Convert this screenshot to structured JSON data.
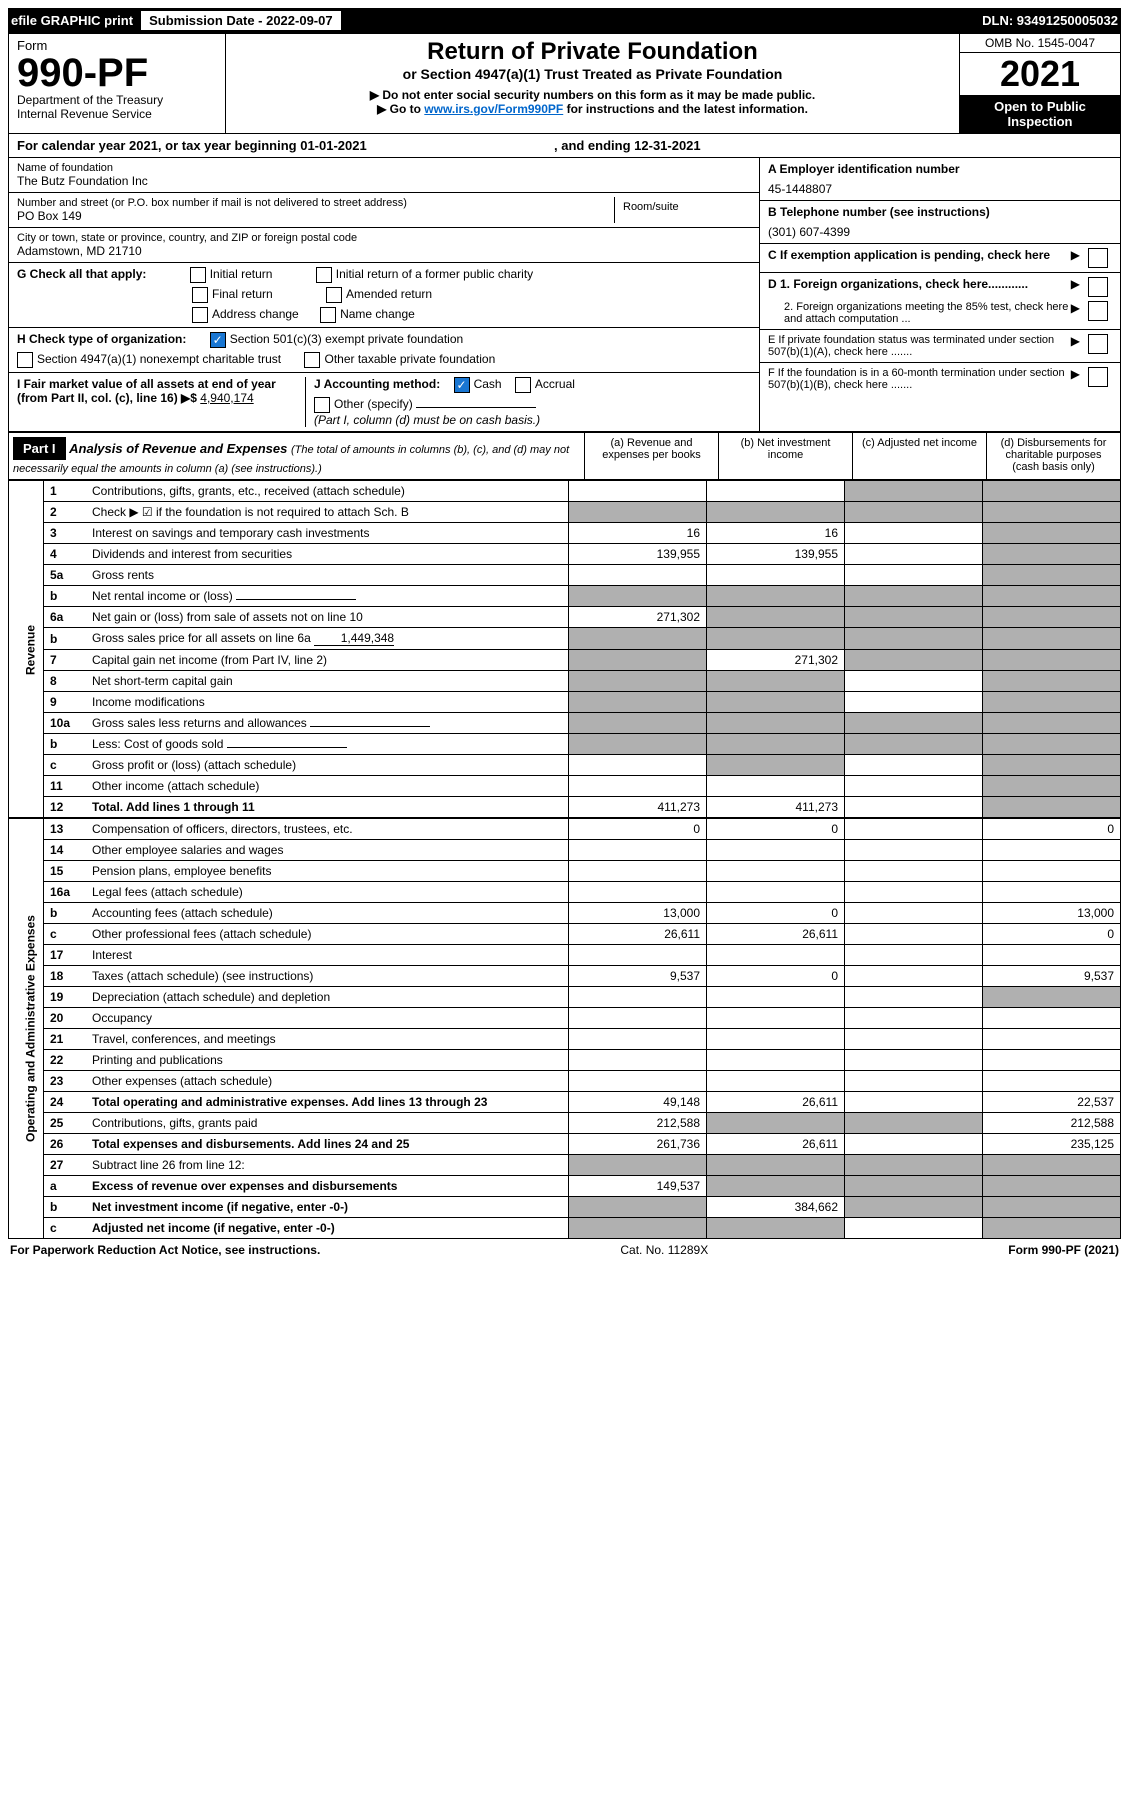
{
  "topbar": {
    "efile": "efile GRAPHIC print",
    "submission_label": "Submission Date - 2022-09-07",
    "dln": "DLN: 93491250005032"
  },
  "header": {
    "form_label": "Form",
    "form_number": "990-PF",
    "dept": "Department of the Treasury",
    "irs": "Internal Revenue Service",
    "title": "Return of Private Foundation",
    "subtitle": "or Section 4947(a)(1) Trust Treated as Private Foundation",
    "note1": "▶ Do not enter social security numbers on this form as it may be made public.",
    "note2_prefix": "▶ Go to ",
    "note2_link": "www.irs.gov/Form990PF",
    "note2_suffix": " for instructions and the latest information.",
    "omb": "OMB No. 1545-0047",
    "year": "2021",
    "open": "Open to Public Inspection"
  },
  "calendar": {
    "text_a": "For calendar year 2021, or tax year beginning 01-01-2021",
    "text_b": ", and ending 12-31-2021"
  },
  "entity": {
    "name_label": "Name of foundation",
    "name": "The Butz Foundation Inc",
    "addr_label": "Number and street (or P.O. box number if mail is not delivered to street address)",
    "addr": "PO Box 149",
    "room_label": "Room/suite",
    "city_label": "City or town, state or province, country, and ZIP or foreign postal code",
    "city": "Adamstown, MD  21710",
    "ein_label": "A Employer identification number",
    "ein": "45-1448807",
    "phone_label": "B Telephone number (see instructions)",
    "phone": "(301) 607-4399",
    "c_label": "C If exemption application is pending, check here",
    "d1": "D 1. Foreign organizations, check here............",
    "d2": "2. Foreign organizations meeting the 85% test, check here and attach computation ...",
    "e": "E  If private foundation status was terminated under section 507(b)(1)(A), check here .......",
    "f": "F  If the foundation is in a 60-month termination under section 507(b)(1)(B), check here .......",
    "g_label": "G Check all that apply:",
    "g_initial": "Initial return",
    "g_initial_former": "Initial return of a former public charity",
    "g_final": "Final return",
    "g_amended": "Amended return",
    "g_address": "Address change",
    "g_name": "Name change",
    "h_label": "H Check type of organization:",
    "h_501c3": "Section 501(c)(3) exempt private foundation",
    "h_4947": "Section 4947(a)(1) nonexempt charitable trust",
    "h_other": "Other taxable private foundation",
    "i_label": "I Fair market value of all assets at end of year (from Part II, col. (c), line 16) ▶$",
    "i_value": "4,940,174",
    "j_label": "J Accounting method:",
    "j_cash": "Cash",
    "j_accrual": "Accrual",
    "j_other": "Other (specify)",
    "j_note": "(Part I, column (d) must be on cash basis.)"
  },
  "part1": {
    "label": "Part I",
    "title": "Analysis of Revenue and Expenses",
    "title_note": " (The total of amounts in columns (b), (c), and (d) may not necessarily equal the amounts in column (a) (see instructions).)",
    "col_a": "(a)  Revenue and expenses per books",
    "col_b": "(b)  Net investment income",
    "col_c": "(c)  Adjusted net income",
    "col_d": "(d)  Disbursements for charitable purposes (cash basis only)"
  },
  "sides": {
    "revenue": "Revenue",
    "expenses": "Operating and Administrative Expenses"
  },
  "rows": [
    {
      "n": "1",
      "label": "Contributions, gifts, grants, etc., received (attach schedule)",
      "a": "",
      "b": "",
      "c": "shaded",
      "d": "shaded"
    },
    {
      "n": "2",
      "label": "Check ▶ ☑ if the foundation is not required to attach Sch. B",
      "a": "shaded",
      "b": "shaded",
      "c": "shaded",
      "d": "shaded",
      "bold_not": true
    },
    {
      "n": "3",
      "label": "Interest on savings and temporary cash investments",
      "a": "16",
      "b": "16",
      "c": "",
      "d": "shaded"
    },
    {
      "n": "4",
      "label": "Dividends and interest from securities",
      "a": "139,955",
      "b": "139,955",
      "c": "",
      "d": "shaded"
    },
    {
      "n": "5a",
      "label": "Gross rents",
      "a": "",
      "b": "",
      "c": "",
      "d": "shaded"
    },
    {
      "n": "b",
      "label": "Net rental income or (loss)",
      "a": "shaded",
      "b": "shaded",
      "c": "shaded",
      "d": "shaded",
      "inline": true
    },
    {
      "n": "6a",
      "label": "Net gain or (loss) from sale of assets not on line 10",
      "a": "271,302",
      "b": "shaded",
      "c": "shaded",
      "d": "shaded"
    },
    {
      "n": "b",
      "label": "Gross sales price for all assets on line 6a",
      "a": "shaded",
      "b": "shaded",
      "c": "shaded",
      "d": "shaded",
      "inline_val": "1,449,348"
    },
    {
      "n": "7",
      "label": "Capital gain net income (from Part IV, line 2)",
      "a": "shaded",
      "b": "271,302",
      "c": "shaded",
      "d": "shaded"
    },
    {
      "n": "8",
      "label": "Net short-term capital gain",
      "a": "shaded",
      "b": "shaded",
      "c": "",
      "d": "shaded"
    },
    {
      "n": "9",
      "label": "Income modifications",
      "a": "shaded",
      "b": "shaded",
      "c": "",
      "d": "shaded"
    },
    {
      "n": "10a",
      "label": "Gross sales less returns and allowances",
      "a": "shaded",
      "b": "shaded",
      "c": "shaded",
      "d": "shaded",
      "inline": true
    },
    {
      "n": "b",
      "label": "Less: Cost of goods sold",
      "a": "shaded",
      "b": "shaded",
      "c": "shaded",
      "d": "shaded",
      "inline": true
    },
    {
      "n": "c",
      "label": "Gross profit or (loss) (attach schedule)",
      "a": "",
      "b": "shaded",
      "c": "",
      "d": "shaded"
    },
    {
      "n": "11",
      "label": "Other income (attach schedule)",
      "a": "",
      "b": "",
      "c": "",
      "d": "shaded"
    },
    {
      "n": "12",
      "label": "Total. Add lines 1 through 11",
      "a": "411,273",
      "b": "411,273",
      "c": "",
      "d": "shaded",
      "bold": true
    }
  ],
  "exp_rows": [
    {
      "n": "13",
      "label": "Compensation of officers, directors, trustees, etc.",
      "a": "0",
      "b": "0",
      "c": "",
      "d": "0"
    },
    {
      "n": "14",
      "label": "Other employee salaries and wages",
      "a": "",
      "b": "",
      "c": "",
      "d": ""
    },
    {
      "n": "15",
      "label": "Pension plans, employee benefits",
      "a": "",
      "b": "",
      "c": "",
      "d": ""
    },
    {
      "n": "16a",
      "label": "Legal fees (attach schedule)",
      "a": "",
      "b": "",
      "c": "",
      "d": ""
    },
    {
      "n": "b",
      "label": "Accounting fees (attach schedule)",
      "a": "13,000",
      "b": "0",
      "c": "",
      "d": "13,000"
    },
    {
      "n": "c",
      "label": "Other professional fees (attach schedule)",
      "a": "26,611",
      "b": "26,611",
      "c": "",
      "d": "0"
    },
    {
      "n": "17",
      "label": "Interest",
      "a": "",
      "b": "",
      "c": "",
      "d": ""
    },
    {
      "n": "18",
      "label": "Taxes (attach schedule) (see instructions)",
      "a": "9,537",
      "b": "0",
      "c": "",
      "d": "9,537"
    },
    {
      "n": "19",
      "label": "Depreciation (attach schedule) and depletion",
      "a": "",
      "b": "",
      "c": "",
      "d": "shaded"
    },
    {
      "n": "20",
      "label": "Occupancy",
      "a": "",
      "b": "",
      "c": "",
      "d": ""
    },
    {
      "n": "21",
      "label": "Travel, conferences, and meetings",
      "a": "",
      "b": "",
      "c": "",
      "d": ""
    },
    {
      "n": "22",
      "label": "Printing and publications",
      "a": "",
      "b": "",
      "c": "",
      "d": ""
    },
    {
      "n": "23",
      "label": "Other expenses (attach schedule)",
      "a": "",
      "b": "",
      "c": "",
      "d": ""
    },
    {
      "n": "24",
      "label": "Total operating and administrative expenses. Add lines 13 through 23",
      "a": "49,148",
      "b": "26,611",
      "c": "",
      "d": "22,537",
      "bold": true
    },
    {
      "n": "25",
      "label": "Contributions, gifts, grants paid",
      "a": "212,588",
      "b": "shaded",
      "c": "shaded",
      "d": "212,588"
    },
    {
      "n": "26",
      "label": "Total expenses and disbursements. Add lines 24 and 25",
      "a": "261,736",
      "b": "26,611",
      "c": "",
      "d": "235,125",
      "bold": true
    },
    {
      "n": "27",
      "label": "Subtract line 26 from line 12:",
      "a": "shaded",
      "b": "shaded",
      "c": "shaded",
      "d": "shaded"
    },
    {
      "n": "a",
      "label": "Excess of revenue over expenses and disbursements",
      "a": "149,537",
      "b": "shaded",
      "c": "shaded",
      "d": "shaded",
      "bold": true
    },
    {
      "n": "b",
      "label": "Net investment income (if negative, enter -0-)",
      "a": "shaded",
      "b": "384,662",
      "c": "shaded",
      "d": "shaded",
      "bold": true
    },
    {
      "n": "c",
      "label": "Adjusted net income (if negative, enter -0-)",
      "a": "shaded",
      "b": "shaded",
      "c": "",
      "d": "shaded",
      "bold": true
    }
  ],
  "footer": {
    "left": "For Paperwork Reduction Act Notice, see instructions.",
    "center": "Cat. No. 11289X",
    "right": "Form 990-PF (2021)"
  }
}
